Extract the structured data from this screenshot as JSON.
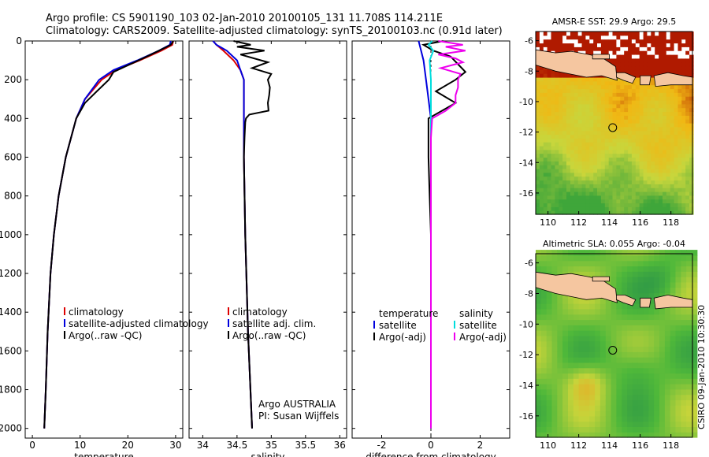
{
  "header": {
    "line1": "Argo profile: CS 5901190_103 02-Jan-2010 20100105_131 11.708S 114.211E",
    "line2": "Climatology: CARS2009. Satellite-adjusted climatology: synTS_20100103.nc (0.91d later)"
  },
  "side_label": "CSIRO 09-Jan-2010 10:30:30",
  "chart_data": [
    {
      "type": "line",
      "id": "temperature",
      "xlabel": "temperature",
      "ylabel": "",
      "xlim": [
        -1.5,
        31.5
      ],
      "ylim": [
        2050,
        0
      ],
      "xticks": [
        0,
        10,
        20,
        30
      ],
      "yticks": [
        0,
        200,
        400,
        600,
        800,
        1000,
        1200,
        1400,
        1600,
        1800,
        2000
      ],
      "legend": [
        {
          "label": "climatology",
          "color": "#dd0000"
        },
        {
          "label": "satellite-adjusted climatology",
          "color": "#0000dd"
        },
        {
          "label": "Argo(..raw -QC)",
          "color": "#000000"
        }
      ],
      "series": [
        {
          "name": "climatology",
          "color": "#dd0000",
          "depth": [
            0,
            20,
            50,
            100,
            150,
            200,
            300,
            400,
            600,
            800,
            1000,
            1200,
            1500,
            1800,
            2000
          ],
          "values": [
            29.5,
            29.3,
            27.0,
            22.5,
            17.5,
            14.5,
            11.0,
            9.2,
            7.0,
            5.5,
            4.5,
            3.8,
            3.2,
            2.8,
            2.5
          ]
        },
        {
          "name": "satellite-adjusted climatology",
          "color": "#0000dd",
          "depth": [
            0,
            20,
            50,
            100,
            150,
            200,
            300,
            400,
            600,
            800,
            1000,
            1200,
            1500,
            1800,
            2000
          ],
          "values": [
            29.0,
            28.8,
            26.5,
            22.0,
            17.0,
            14.0,
            11.0,
            9.2,
            7.0,
            5.5,
            4.5,
            3.8,
            3.2,
            2.8,
            2.5
          ]
        },
        {
          "name": "Argo(..raw -QC)",
          "color": "#000000",
          "depth": [
            0,
            20,
            50,
            80,
            120,
            160,
            200,
            260,
            320,
            400,
            600,
            800,
            1000,
            1200,
            1500,
            1800,
            2000
          ],
          "values": [
            29.5,
            29.0,
            26.5,
            24.0,
            20.5,
            17.0,
            16.0,
            13.5,
            11.0,
            9.2,
            7.0,
            5.5,
            4.5,
            3.8,
            3.2,
            2.8,
            2.5
          ]
        }
      ]
    },
    {
      "type": "line",
      "id": "salinity",
      "xlabel": "salinity",
      "ylabel": "",
      "xlim": [
        33.8,
        36.1
      ],
      "ylim": [
        2050,
        0
      ],
      "xticks": [
        34,
        34.5,
        35,
        35.5,
        36
      ],
      "legend": [
        {
          "label": "climatology",
          "color": "#dd0000"
        },
        {
          "label": "satellite adj. clim.",
          "color": "#0000dd"
        },
        {
          "label": "Argo(..raw -QC)",
          "color": "#000000"
        }
      ],
      "annotation": [
        "Argo AUSTRALIA",
        "PI: Susan Wijffels"
      ],
      "series": [
        {
          "name": "climatology",
          "color": "#dd0000",
          "depth": [
            0,
            20,
            50,
            100,
            150,
            200,
            300,
            400,
            600,
            1000,
            1500,
            2000
          ],
          "values": [
            34.15,
            34.2,
            34.3,
            34.45,
            34.55,
            34.6,
            34.6,
            34.6,
            34.6,
            34.62,
            34.66,
            34.72
          ]
        },
        {
          "name": "satellite adj. clim.",
          "color": "#0000dd",
          "depth": [
            0,
            20,
            50,
            100,
            150,
            200,
            300,
            400,
            600,
            1000,
            1500,
            2000
          ],
          "values": [
            34.15,
            34.2,
            34.35,
            34.5,
            34.55,
            34.6,
            34.6,
            34.6,
            34.6,
            34.62,
            34.66,
            34.72
          ]
        },
        {
          "name": "Argo(..raw -QC)",
          "color": "#000000",
          "depth": [
            0,
            20,
            30,
            50,
            70,
            90,
            110,
            140,
            170,
            200,
            240,
            280,
            320,
            360,
            380,
            400,
            420,
            500,
            600,
            1000,
            1500,
            2000
          ],
          "values": [
            34.45,
            34.7,
            34.5,
            34.9,
            34.55,
            34.75,
            34.95,
            34.72,
            35.0,
            34.95,
            34.98,
            34.97,
            34.95,
            34.96,
            34.68,
            34.63,
            34.62,
            34.61,
            34.6,
            34.62,
            34.66,
            34.72
          ]
        }
      ]
    },
    {
      "type": "line",
      "id": "difference",
      "xlabel": "difference from climatology",
      "ylabel": "",
      "xlim": [
        -3.2,
        3.2
      ],
      "ylim": [
        2050,
        0
      ],
      "xticks": [
        -2,
        0,
        2
      ],
      "legend_left_title": "temperature",
      "legend_right_title": "salinity",
      "legend": [
        {
          "label": "satellite",
          "color": "#0000dd"
        },
        {
          "label": "Argo(-adj)",
          "color": "#000000"
        },
        {
          "label": "satellite",
          "color": "#00dddd"
        },
        {
          "label": "Argo(-adj)",
          "color": "#ee00ee"
        }
      ],
      "series": [
        {
          "name": "temperature satellite",
          "color": "#0000dd",
          "depth": [
            0,
            50,
            100,
            200,
            400,
            1000,
            2000
          ],
          "values": [
            -0.5,
            -0.4,
            -0.3,
            -0.2,
            0.0,
            0.0,
            0.0
          ]
        },
        {
          "name": "temperature Argo(-adj)",
          "color": "#000000",
          "depth": [
            0,
            20,
            50,
            80,
            120,
            160,
            200,
            260,
            320,
            400,
            600,
            800,
            1000,
            1500,
            2000
          ],
          "values": [
            0.5,
            -0.3,
            0.1,
            0.8,
            1.1,
            1.4,
            1.0,
            0.2,
            1.0,
            -0.1,
            -0.1,
            -0.05,
            0.0,
            0.0,
            0.0
          ]
        },
        {
          "name": "salinity satellite",
          "color": "#00dddd",
          "depth": [
            0,
            20,
            50,
            100,
            200,
            400,
            1000,
            2000
          ],
          "values": [
            0.05,
            -0.1,
            0.1,
            -0.05,
            0.0,
            0.0,
            0.0,
            0.0
          ]
        },
        {
          "name": "salinity Argo(-adj)",
          "color": "#ee00ee",
          "depth": [
            0,
            20,
            30,
            50,
            70,
            90,
            110,
            140,
            170,
            200,
            240,
            280,
            320,
            360,
            400,
            500,
            1000,
            2000
          ],
          "values": [
            0.3,
            1.3,
            0.6,
            1.4,
            0.3,
            1.0,
            1.3,
            0.4,
            1.2,
            1.1,
            1.1,
            1.0,
            1.0,
            0.6,
            0.05,
            0.0,
            0.0,
            0.0
          ]
        }
      ]
    },
    {
      "type": "heatmap",
      "id": "sst-map",
      "title": "AMSR-E SST: 29.9  Argo: 29.5",
      "xlim": [
        109.2,
        119.4
      ],
      "ylim": [
        -17.4,
        -5.4
      ],
      "xticks": [
        110,
        112,
        114,
        116,
        118
      ],
      "yticks": [
        -6,
        -8,
        -10,
        -12,
        -14,
        -16
      ],
      "marker": {
        "lon": 114.211,
        "lat": -11.708
      },
      "colors": {
        "low": "#3fa63a",
        "mid": "#c8d63c",
        "high": "#f0b814",
        "peak": "#b01a00",
        "land": "#f5c6a0"
      }
    },
    {
      "type": "heatmap",
      "id": "sla-map",
      "title": "Altimetric SLA: 0.055  Argo: -0.04",
      "xlim": [
        109.2,
        119.4
      ],
      "ylim": [
        -17.4,
        -5.4
      ],
      "xticks": [
        110,
        112,
        114,
        116,
        118
      ],
      "yticks": [
        -6,
        -8,
        -10,
        -12,
        -14,
        -16
      ],
      "marker": {
        "lon": 114.211,
        "lat": -11.708
      },
      "colors": {
        "low": "#1f8a4c",
        "mid": "#4fb83a",
        "high": "#c7d43a",
        "peak": "#f0a020",
        "land": "#f5c6a0"
      }
    }
  ]
}
